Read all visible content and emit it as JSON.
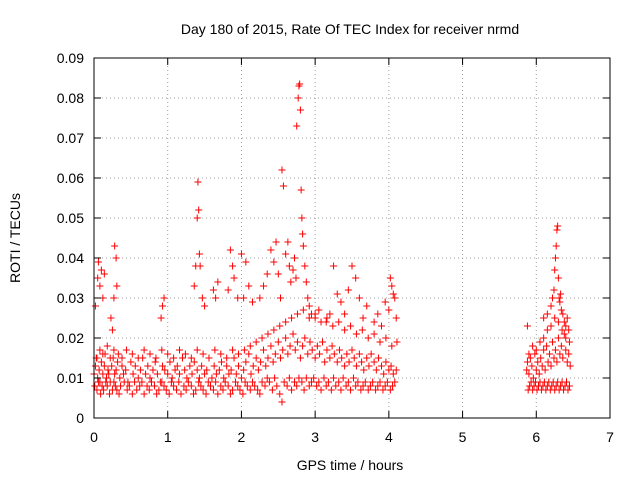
{
  "chart_data": {
    "type": "scatter",
    "title": "Day 180 of 2015, Rate Of TEC Index for receiver nrmd",
    "xlabel": "GPS time / hours",
    "ylabel": "ROTI / TECUs",
    "xlim": [
      0,
      7
    ],
    "ylim": [
      0,
      0.09
    ],
    "xticks": [
      "0",
      "1",
      "2",
      "3",
      "4",
      "5",
      "6",
      "7"
    ],
    "yticks": [
      "0",
      "0.01",
      "0.02",
      "0.03",
      "0.04",
      "0.05",
      "0.06",
      "0.07",
      "0.08",
      "0.09"
    ],
    "grid": true,
    "marker": "plus",
    "series": [
      {
        "name": "ROTI",
        "color": "#ff0000",
        "x": [
          0.0,
          0.02,
          0.03,
          0.05,
          0.07,
          0.08,
          0.1,
          0.12,
          0.14,
          0.15,
          0.17,
          0.19,
          0.2,
          0.22,
          0.24,
          0.26,
          0.28,
          0.3,
          0.32,
          0.35,
          0.38,
          0.4,
          0.43,
          0.46,
          0.5,
          0.53,
          0.56,
          0.6,
          0.63,
          0.66,
          0.7,
          0.73,
          0.76,
          0.8,
          0.83,
          0.86,
          0.9,
          0.93,
          0.96,
          1.0,
          1.03,
          1.06,
          1.1,
          1.13,
          1.16,
          1.2,
          1.23,
          1.26,
          1.3,
          1.33,
          1.36,
          1.4,
          1.43,
          1.46,
          1.5,
          1.53,
          1.56,
          1.6,
          1.63,
          1.66,
          1.7,
          1.73,
          1.76,
          1.8,
          1.83,
          1.86,
          1.9,
          1.93,
          1.96,
          2.0,
          2.03,
          2.06,
          2.1,
          2.13,
          2.16,
          2.2,
          2.23,
          2.26,
          2.3,
          2.33,
          2.36,
          2.4,
          2.43,
          2.46,
          2.5,
          2.53,
          2.56,
          2.6,
          2.63,
          2.66,
          2.7,
          2.73,
          2.76,
          2.8,
          2.83,
          2.86,
          2.9,
          2.93,
          2.96,
          3.0,
          3.03,
          3.06,
          3.1,
          3.13,
          3.16,
          3.2,
          3.23,
          3.26,
          3.3,
          3.33,
          3.36,
          3.4,
          3.43,
          3.46,
          3.5,
          3.53,
          3.56,
          3.6,
          3.63,
          3.66,
          3.7,
          3.73,
          3.76,
          3.8,
          3.83,
          3.86,
          3.9,
          3.93,
          3.96,
          4.0,
          4.03,
          4.06,
          4.1,
          0.01,
          0.04,
          0.06,
          0.09,
          0.11,
          0.13,
          0.16,
          0.18,
          0.21,
          0.25,
          0.27,
          0.29,
          0.31,
          0.34,
          0.36,
          0.41,
          0.45,
          0.48,
          0.52,
          0.55,
          0.58,
          0.62,
          0.65,
          0.68,
          0.72,
          0.75,
          0.78,
          0.82,
          0.85,
          0.88,
          0.92,
          0.95,
          0.98,
          1.02,
          1.05,
          1.08,
          1.12,
          1.15,
          1.18,
          1.22,
          1.25,
          1.28,
          1.32,
          1.35,
          1.38,
          1.42,
          1.45,
          1.48,
          1.52,
          1.55,
          1.58,
          1.62,
          1.65,
          1.68,
          1.72,
          1.75,
          1.78,
          1.82,
          1.85,
          1.88,
          1.92,
          1.95,
          1.98,
          2.02,
          2.05,
          2.08,
          2.12,
          2.15,
          2.18,
          2.22,
          2.25,
          2.28,
          2.32,
          2.35,
          2.38,
          2.42,
          2.45,
          2.48,
          2.52,
          2.55,
          2.58,
          2.62,
          2.65,
          2.68,
          2.72,
          2.75,
          2.78,
          2.82,
          2.85,
          2.88,
          2.92,
          2.95,
          2.98,
          3.02,
          3.05,
          3.08,
          3.12,
          3.15,
          3.18,
          3.22,
          3.25,
          3.28,
          3.32,
          3.35,
          3.38,
          3.42,
          3.45,
          3.48,
          3.52,
          3.55,
          3.58,
          3.62,
          3.65,
          3.68,
          3.72,
          3.75,
          3.78,
          3.82,
          3.85,
          3.88,
          3.92,
          3.95,
          3.98,
          4.02,
          4.05,
          4.08,
          0.04,
          0.08,
          0.12,
          0.18,
          0.22,
          0.27,
          0.33,
          0.38,
          0.44,
          0.52,
          0.6,
          0.68,
          0.76,
          0.84,
          0.92,
          1.0,
          1.08,
          1.16,
          1.24,
          1.32,
          1.4,
          1.48,
          1.56,
          1.64,
          1.72,
          1.8,
          1.88,
          1.96,
          2.04,
          2.12,
          2.2,
          2.28,
          2.36,
          2.44,
          2.52,
          2.6,
          2.68,
          2.76,
          2.84,
          2.92,
          3.0,
          3.08,
          3.16,
          3.24,
          3.32,
          3.4,
          3.48,
          3.56,
          3.64,
          3.72,
          3.8,
          3.88,
          3.96,
          4.04,
          4.11,
          0.02,
          0.05,
          0.06,
          0.08,
          0.1,
          0.12,
          0.14,
          0.23,
          0.25,
          0.27,
          0.28,
          0.3,
          0.31,
          0.91,
          0.93,
          0.95,
          1.36,
          1.38,
          1.4,
          1.41,
          1.42,
          1.43,
          1.44,
          1.47,
          1.5,
          1.62,
          1.65,
          1.68,
          1.82,
          1.85,
          1.88,
          1.9,
          1.95,
          2.0,
          2.03,
          2.06,
          2.1,
          2.15,
          2.25,
          2.3,
          2.35,
          2.4,
          2.44,
          2.47,
          2.5,
          2.53,
          2.55,
          2.57,
          2.6,
          2.63,
          2.65,
          2.67,
          2.7,
          2.72,
          2.74,
          2.75,
          2.77,
          2.78,
          2.79,
          2.8,
          2.81,
          2.82,
          2.83,
          2.84,
          2.86,
          2.88,
          2.9,
          2.92,
          2.95,
          3.0,
          3.05,
          3.15,
          3.2,
          3.25,
          3.3,
          3.35,
          3.4,
          3.45,
          3.5,
          3.55,
          3.6,
          3.65,
          3.7,
          3.8,
          3.85,
          3.9,
          3.95,
          4.0,
          4.02,
          4.04,
          4.06,
          4.08,
          4.1,
          5.87,
          5.88,
          5.9,
          5.92,
          5.94,
          5.96,
          5.98,
          6.0,
          6.02,
          6.04,
          6.06,
          6.08,
          6.1,
          6.12,
          6.14,
          6.16,
          6.18,
          6.2,
          6.22,
          6.24,
          6.26,
          6.28,
          6.3,
          6.32,
          6.34,
          6.36,
          6.38,
          6.4,
          6.42,
          6.44,
          6.46,
          5.89,
          5.91,
          5.93,
          5.95,
          5.97,
          5.99,
          6.01,
          6.03,
          6.05,
          6.07,
          6.09,
          6.11,
          6.13,
          6.15,
          6.17,
          6.19,
          6.21,
          6.23,
          6.25,
          6.27,
          6.29,
          6.31,
          6.33,
          6.35,
          6.37,
          6.39,
          6.41,
          6.43,
          6.45,
          5.9,
          5.95,
          6.0,
          6.05,
          6.1,
          6.15,
          6.2,
          6.25,
          6.3,
          6.35,
          6.4,
          6.45,
          5.88,
          6.1,
          6.15,
          6.2,
          6.22,
          6.24,
          6.25,
          6.26,
          6.27,
          6.28,
          6.29,
          6.3,
          6.31,
          6.32,
          6.33,
          6.34,
          6.36,
          6.38,
          6.4,
          6.42,
          6.44
        ],
        "y": [
          0.011,
          0.013,
          0.015,
          0.01,
          0.012,
          0.009,
          0.014,
          0.011,
          0.013,
          0.016,
          0.01,
          0.012,
          0.011,
          0.009,
          0.013,
          0.015,
          0.011,
          0.012,
          0.014,
          0.01,
          0.013,
          0.011,
          0.012,
          0.009,
          0.014,
          0.011,
          0.013,
          0.01,
          0.012,
          0.015,
          0.011,
          0.013,
          0.01,
          0.012,
          0.014,
          0.011,
          0.009,
          0.013,
          0.012,
          0.011,
          0.014,
          0.01,
          0.012,
          0.013,
          0.011,
          0.015,
          0.012,
          0.01,
          0.013,
          0.011,
          0.014,
          0.012,
          0.01,
          0.013,
          0.011,
          0.012,
          0.015,
          0.01,
          0.013,
          0.011,
          0.012,
          0.014,
          0.01,
          0.013,
          0.011,
          0.012,
          0.015,
          0.011,
          0.013,
          0.01,
          0.012,
          0.014,
          0.016,
          0.011,
          0.013,
          0.015,
          0.012,
          0.014,
          0.017,
          0.013,
          0.015,
          0.018,
          0.014,
          0.016,
          0.019,
          0.015,
          0.017,
          0.02,
          0.016,
          0.018,
          0.021,
          0.017,
          0.019,
          0.015,
          0.018,
          0.02,
          0.016,
          0.019,
          0.017,
          0.015,
          0.018,
          0.016,
          0.019,
          0.014,
          0.017,
          0.015,
          0.018,
          0.016,
          0.014,
          0.017,
          0.015,
          0.013,
          0.016,
          0.014,
          0.017,
          0.015,
          0.013,
          0.016,
          0.014,
          0.012,
          0.015,
          0.013,
          0.016,
          0.014,
          0.012,
          0.015,
          0.013,
          0.011,
          0.014,
          0.012,
          0.013,
          0.011,
          0.012,
          0.008,
          0.007,
          0.009,
          0.006,
          0.008,
          0.007,
          0.009,
          0.008,
          0.006,
          0.007,
          0.009,
          0.008,
          0.007,
          0.006,
          0.008,
          0.009,
          0.007,
          0.008,
          0.006,
          0.009,
          0.007,
          0.008,
          0.009,
          0.006,
          0.008,
          0.007,
          0.009,
          0.008,
          0.006,
          0.007,
          0.009,
          0.008,
          0.007,
          0.006,
          0.009,
          0.008,
          0.007,
          0.009,
          0.006,
          0.008,
          0.007,
          0.009,
          0.008,
          0.006,
          0.007,
          0.009,
          0.008,
          0.007,
          0.006,
          0.009,
          0.008,
          0.007,
          0.009,
          0.006,
          0.008,
          0.007,
          0.009,
          0.008,
          0.006,
          0.007,
          0.009,
          0.008,
          0.007,
          0.006,
          0.009,
          0.008,
          0.007,
          0.009,
          0.008,
          0.007,
          0.006,
          0.009,
          0.008,
          0.01,
          0.009,
          0.007,
          0.01,
          0.008,
          0.006,
          0.004,
          0.009,
          0.008,
          0.01,
          0.007,
          0.009,
          0.008,
          0.01,
          0.009,
          0.007,
          0.01,
          0.008,
          0.009,
          0.01,
          0.008,
          0.009,
          0.007,
          0.01,
          0.008,
          0.009,
          0.007,
          0.01,
          0.008,
          0.009,
          0.007,
          0.01,
          0.008,
          0.009,
          0.007,
          0.01,
          0.008,
          0.009,
          0.007,
          0.008,
          0.009,
          0.007,
          0.008,
          0.009,
          0.007,
          0.008,
          0.009,
          0.007,
          0.008,
          0.009,
          0.007,
          0.008,
          0.009,
          0.015,
          0.017,
          0.016,
          0.018,
          0.015,
          0.017,
          0.016,
          0.015,
          0.017,
          0.016,
          0.015,
          0.017,
          0.016,
          0.015,
          0.017,
          0.016,
          0.015,
          0.017,
          0.016,
          0.015,
          0.017,
          0.016,
          0.015,
          0.017,
          0.016,
          0.015,
          0.017,
          0.016,
          0.017,
          0.018,
          0.019,
          0.02,
          0.021,
          0.022,
          0.023,
          0.024,
          0.025,
          0.026,
          0.027,
          0.025,
          0.026,
          0.024,
          0.025,
          0.023,
          0.024,
          0.022,
          0.023,
          0.021,
          0.022,
          0.02,
          0.021,
          0.019,
          0.02,
          0.018,
          0.019,
          0.028,
          0.035,
          0.039,
          0.033,
          0.037,
          0.03,
          0.036,
          0.025,
          0.022,
          0.03,
          0.043,
          0.04,
          0.033,
          0.025,
          0.028,
          0.03,
          0.033,
          0.038,
          0.05,
          0.059,
          0.052,
          0.041,
          0.038,
          0.03,
          0.028,
          0.032,
          0.03,
          0.034,
          0.032,
          0.042,
          0.038,
          0.035,
          0.03,
          0.041,
          0.03,
          0.039,
          0.033,
          0.029,
          0.03,
          0.033,
          0.036,
          0.042,
          0.039,
          0.044,
          0.036,
          0.03,
          0.062,
          0.058,
          0.041,
          0.044,
          0.038,
          0.034,
          0.037,
          0.04,
          0.035,
          0.073,
          0.08,
          0.083,
          0.0835,
          0.077,
          0.057,
          0.05,
          0.046,
          0.043,
          0.038,
          0.034,
          0.03,
          0.028,
          0.026,
          0.025,
          0.027,
          0.024,
          0.026,
          0.038,
          0.031,
          0.029,
          0.026,
          0.032,
          0.038,
          0.035,
          0.03,
          0.025,
          0.028,
          0.024,
          0.026,
          0.023,
          0.029,
          0.027,
          0.035,
          0.033,
          0.031,
          0.03,
          0.025,
          0.012,
          0.014,
          0.011,
          0.015,
          0.013,
          0.01,
          0.016,
          0.012,
          0.014,
          0.011,
          0.015,
          0.013,
          0.017,
          0.012,
          0.018,
          0.014,
          0.016,
          0.013,
          0.019,
          0.015,
          0.017,
          0.014,
          0.02,
          0.016,
          0.018,
          0.015,
          0.021,
          0.017,
          0.014,
          0.016,
          0.013,
          0.007,
          0.008,
          0.009,
          0.007,
          0.008,
          0.009,
          0.007,
          0.008,
          0.009,
          0.007,
          0.008,
          0.009,
          0.007,
          0.008,
          0.009,
          0.007,
          0.008,
          0.009,
          0.007,
          0.008,
          0.009,
          0.007,
          0.008,
          0.009,
          0.007,
          0.008,
          0.009,
          0.007,
          0.008,
          0.016,
          0.018,
          0.017,
          0.019,
          0.02,
          0.022,
          0.023,
          0.025,
          0.024,
          0.022,
          0.02,
          0.019,
          0.023,
          0.025,
          0.026,
          0.028,
          0.03,
          0.032,
          0.037,
          0.04,
          0.043,
          0.047,
          0.048,
          0.035,
          0.03,
          0.029,
          0.031,
          0.027,
          0.026,
          0.024,
          0.023,
          0.025,
          0.022
        ]
      }
    ]
  }
}
